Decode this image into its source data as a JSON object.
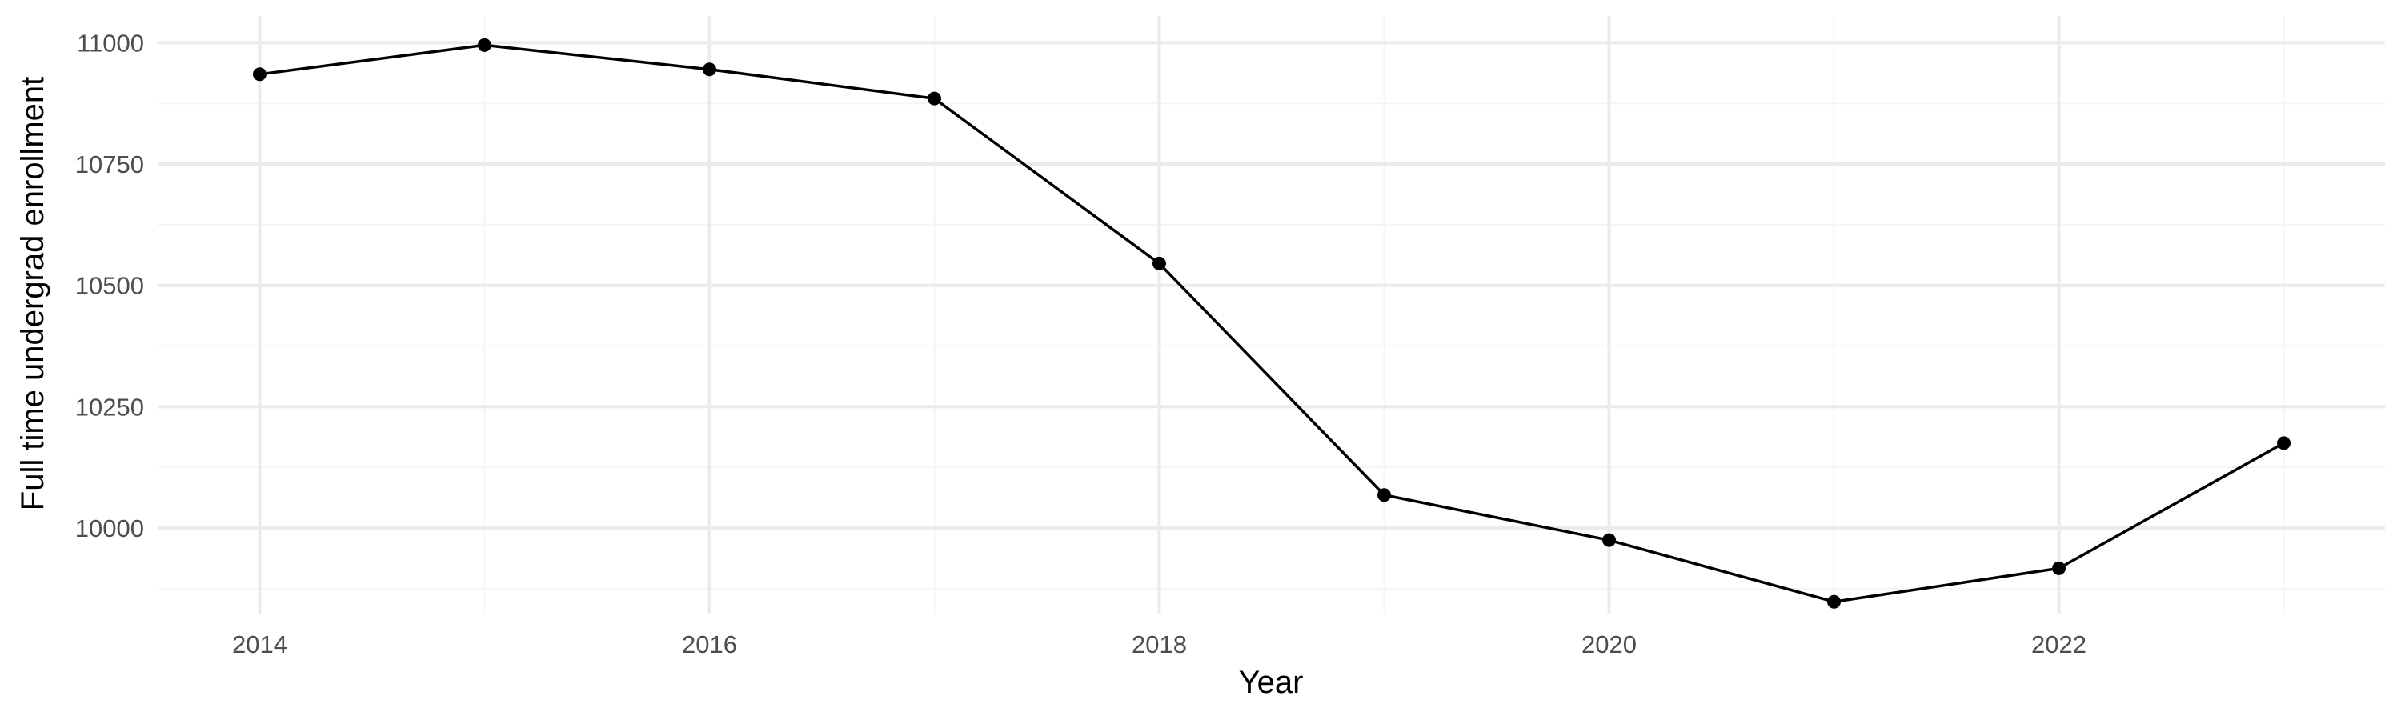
{
  "chart_data": {
    "type": "line",
    "title": "",
    "xlabel": "Year",
    "ylabel": "Full time undergrad enrollment",
    "x": [
      2014,
      2015,
      2016,
      2017,
      2018,
      2019,
      2020,
      2021,
      2022,
      2023
    ],
    "series": [
      {
        "values": [
          10935,
          10995,
          10945,
          10885,
          10545,
          10068,
          9975,
          9848,
          9917,
          10175
        ]
      }
    ],
    "xlim": [
      2013.55,
      2023.45
    ],
    "ylim": [
      9822,
      11055
    ],
    "x_ticks": [
      2014,
      2016,
      2018,
      2020,
      2022
    ],
    "x_tick_labels": [
      "2014",
      "2016",
      "2018",
      "2020",
      "2022"
    ],
    "y_ticks": [
      10000,
      10250,
      10500,
      10750,
      11000
    ],
    "y_tick_labels": [
      "10000",
      "10250",
      "10500",
      "10750",
      "11000"
    ],
    "x_minor_ticks": [
      2015,
      2017,
      2019,
      2021,
      2023
    ],
    "y_minor_ticks": [
      9875,
      10125,
      10375,
      10625,
      10875
    ],
    "grid": true,
    "legend": "none",
    "colors": {
      "line": "#000000",
      "point": "#000000",
      "grid_major": "#ebebeb",
      "grid_minor": "#f5f5f5"
    }
  }
}
